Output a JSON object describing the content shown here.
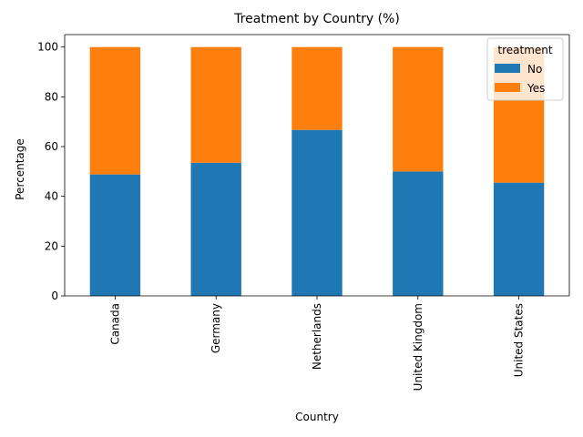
{
  "chart_data": {
    "type": "bar",
    "stacked": true,
    "title": "Treatment by Country (%)",
    "xlabel": "Country",
    "ylabel": "Percentage",
    "ylim": [
      0,
      105
    ],
    "yticks": [
      0,
      20,
      40,
      60,
      80,
      100
    ],
    "categories": [
      "Canada",
      "Germany",
      "Netherlands",
      "United Kingdom",
      "United States"
    ],
    "series": [
      {
        "name": "No",
        "color": "#1f77b4",
        "values": [
          48.8,
          53.5,
          66.7,
          50.0,
          45.5
        ]
      },
      {
        "name": "Yes",
        "color": "#ff7f0e",
        "values": [
          51.2,
          46.5,
          33.3,
          50.0,
          54.5
        ]
      }
    ],
    "legend": {
      "title": "treatment",
      "position": "top-right"
    },
    "grid": false
  }
}
